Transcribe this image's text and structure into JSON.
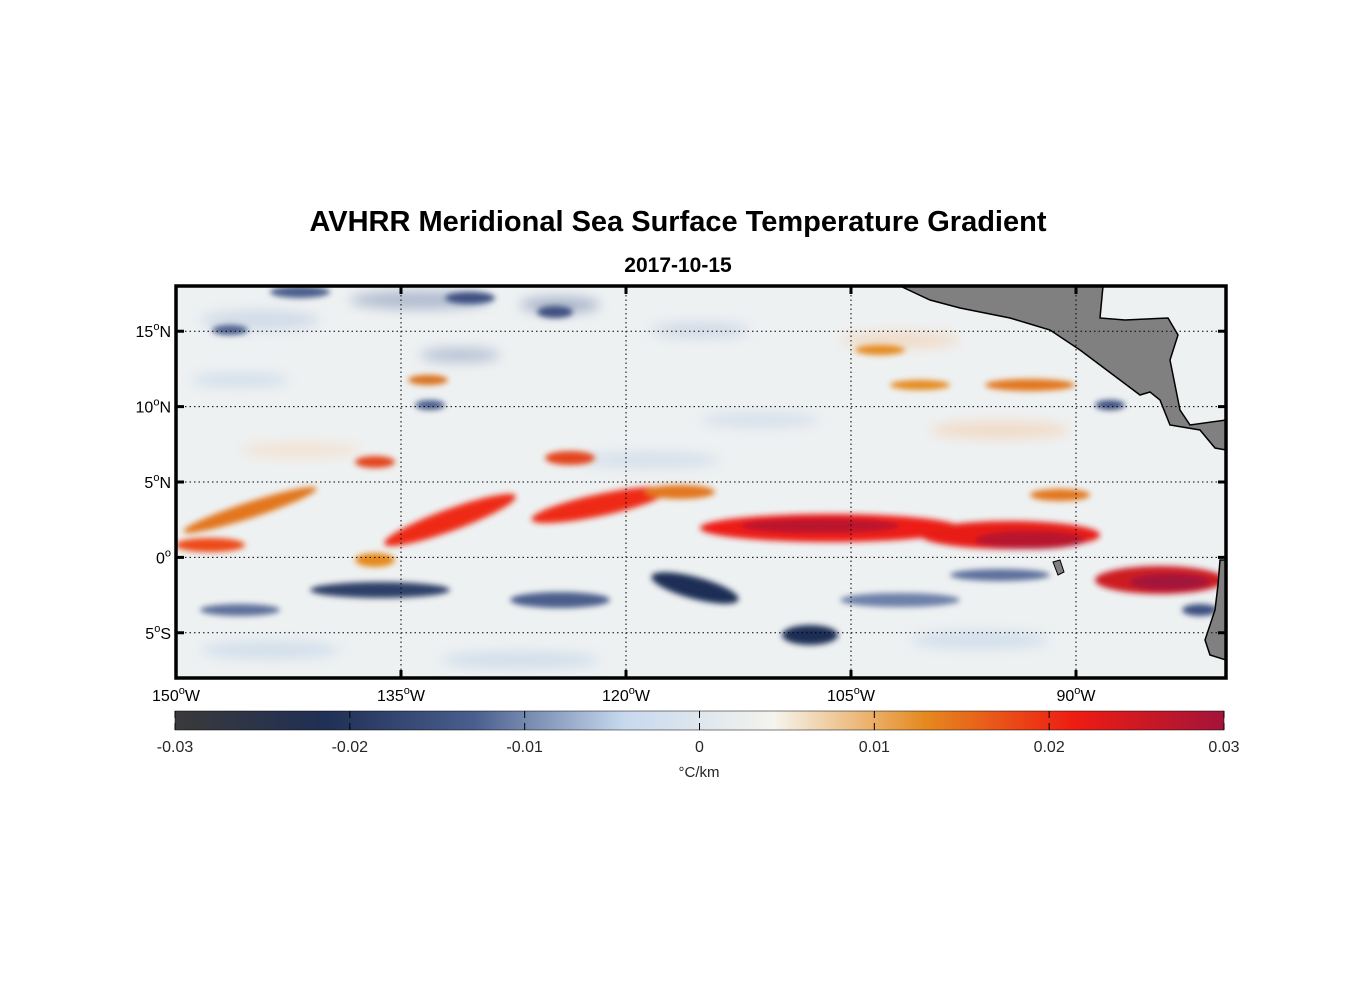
{
  "title": "AVHRR Meridional Sea Surface Temperature Gradient",
  "subtitle": "2017-10-15",
  "map": {
    "lon_range": [
      -150,
      -80
    ],
    "lat_range": [
      -8,
      18
    ],
    "lat_ticks": [
      {
        "value": 15,
        "num": "15",
        "hemi": "N"
      },
      {
        "value": 10,
        "num": "10",
        "hemi": "N"
      },
      {
        "value": 5,
        "num": "5",
        "hemi": "N"
      },
      {
        "value": 0,
        "num": "0",
        "hemi": ""
      },
      {
        "value": -5,
        "num": "5",
        "hemi": "S"
      }
    ],
    "lon_ticks": [
      {
        "value": -150,
        "num": "150",
        "hemi": "W"
      },
      {
        "value": -135,
        "num": "135",
        "hemi": "W"
      },
      {
        "value": -120,
        "num": "120",
        "hemi": "W"
      },
      {
        "value": -105,
        "num": "105",
        "hemi": "W"
      },
      {
        "value": -90,
        "num": "90",
        "hemi": "W"
      }
    ],
    "land_color": "#808080",
    "grid": true
  },
  "colorbar": {
    "range": [
      -0.03,
      0.03
    ],
    "ticks": [
      "-0.03",
      "-0.02",
      "-0.01",
      "0",
      "0.01",
      "0.02",
      "0.03"
    ],
    "tick_values": [
      -0.03,
      -0.02,
      -0.01,
      0,
      0.01,
      0.02,
      0.03
    ],
    "unit": "°C/km",
    "colors": [
      "#3a3a3a",
      "#1f2f55",
      "#4a5f8e",
      "#c7d9ee",
      "#f5f4ee",
      "#e58a1f",
      "#ee1c12",
      "#a3143a"
    ]
  }
}
